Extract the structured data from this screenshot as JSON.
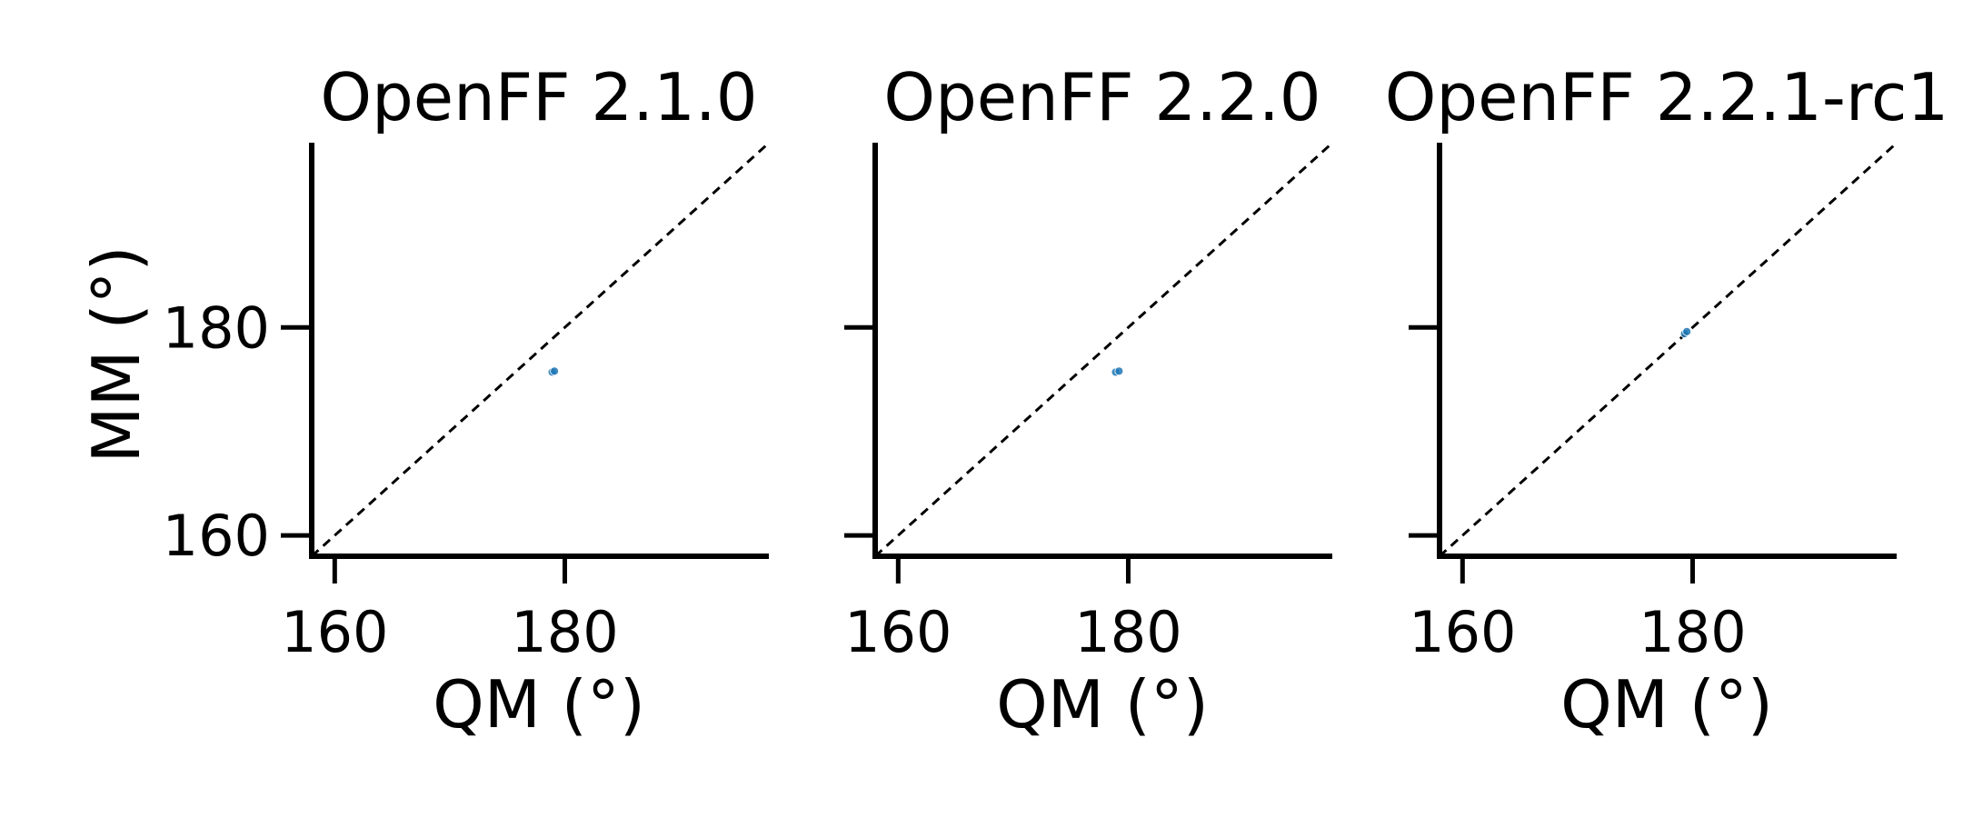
{
  "figure": {
    "ylabel": "MM (°)"
  },
  "chart_data": [
    {
      "type": "scatter",
      "title": "OpenFF 2.1.0",
      "xlabel": "QM (°)",
      "ylabel": "MM (°)",
      "xlim": [
        158,
        197.5
      ],
      "ylim": [
        158,
        197.5
      ],
      "xticks": [
        160,
        180
      ],
      "yticks": [
        160,
        180
      ],
      "xtick_labels": [
        "160",
        "180"
      ],
      "ytick_labels": [
        "160",
        "180"
      ],
      "show_ytick_labels": true,
      "reference_line": "y = x",
      "grid": false,
      "series": [
        {
          "x": [
            178.9,
            179.1
          ],
          "y": [
            175.7,
            175.8
          ],
          "color": "#1f77b4"
        }
      ]
    },
    {
      "type": "scatter",
      "title": "OpenFF 2.2.0",
      "xlabel": "QM (°)",
      "ylabel": "",
      "xlim": [
        158,
        197.5
      ],
      "ylim": [
        158,
        197.5
      ],
      "xticks": [
        160,
        180
      ],
      "yticks": [
        160,
        180
      ],
      "xtick_labels": [
        "160",
        "180"
      ],
      "ytick_labels": [
        "",
        ""
      ],
      "show_ytick_labels": false,
      "reference_line": "y = x",
      "grid": false,
      "series": [
        {
          "x": [
            178.9,
            179.2
          ],
          "y": [
            175.7,
            175.8
          ],
          "color": "#1f77b4"
        }
      ]
    },
    {
      "type": "scatter",
      "title": "OpenFF 2.2.1-rc1",
      "xlabel": "QM (°)",
      "ylabel": "",
      "xlim": [
        158,
        197.5
      ],
      "ylim": [
        158,
        197.5
      ],
      "xticks": [
        160,
        180
      ],
      "yticks": [
        160,
        180
      ],
      "xtick_labels": [
        "160",
        "180"
      ],
      "ytick_labels": [
        "",
        ""
      ],
      "show_ytick_labels": false,
      "reference_line": "y = x",
      "grid": false,
      "series": [
        {
          "x": [
            179.3,
            179.5
          ],
          "y": [
            179.4,
            179.6
          ],
          "color": "#1f77b4"
        }
      ]
    }
  ]
}
